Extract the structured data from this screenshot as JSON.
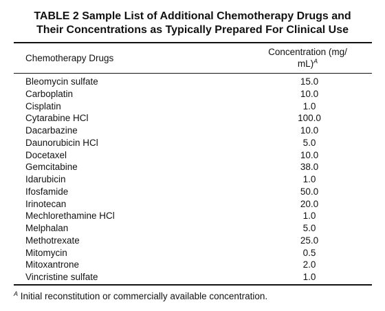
{
  "table": {
    "title_line1": "TABLE 2 Sample List of Additional Chemotherapy Drugs and",
    "title_line2": "Their Concentrations as Typically Prepared For Clinical Use",
    "header_drugs": "Chemotherapy Drugs",
    "header_conc_line1": "Concentration (mg/",
    "header_conc_line2": "mL)",
    "header_conc_sup": "A",
    "rows": [
      {
        "drug": "Bleomycin sulfate",
        "conc": "15.0"
      },
      {
        "drug": "Carboplatin",
        "conc": "10.0"
      },
      {
        "drug": "Cisplatin",
        "conc": "1.0"
      },
      {
        "drug": "Cytarabine HCl",
        "conc": "100.0"
      },
      {
        "drug": "Dacarbazine",
        "conc": "10.0"
      },
      {
        "drug": "Daunorubicin HCl",
        "conc": "5.0"
      },
      {
        "drug": "Docetaxel",
        "conc": "10.0"
      },
      {
        "drug": "Gemcitabine",
        "conc": "38.0"
      },
      {
        "drug": "Idarubicin",
        "conc": "1.0"
      },
      {
        "drug": "Ifosfamide",
        "conc": "50.0"
      },
      {
        "drug": "Irinotecan",
        "conc": "20.0"
      },
      {
        "drug": "Mechlorethamine HCl",
        "conc": "1.0"
      },
      {
        "drug": "Melphalan",
        "conc": "5.0"
      },
      {
        "drug": "Methotrexate",
        "conc": "25.0"
      },
      {
        "drug": "Mitomycin",
        "conc": "0.5"
      },
      {
        "drug": "Mitoxantrone",
        "conc": "2.0"
      },
      {
        "drug": "Vincristine sulfate",
        "conc": "1.0"
      }
    ],
    "footnote_marker": "A",
    "footnote_text": " Initial reconstitution or commercially available concentration."
  }
}
